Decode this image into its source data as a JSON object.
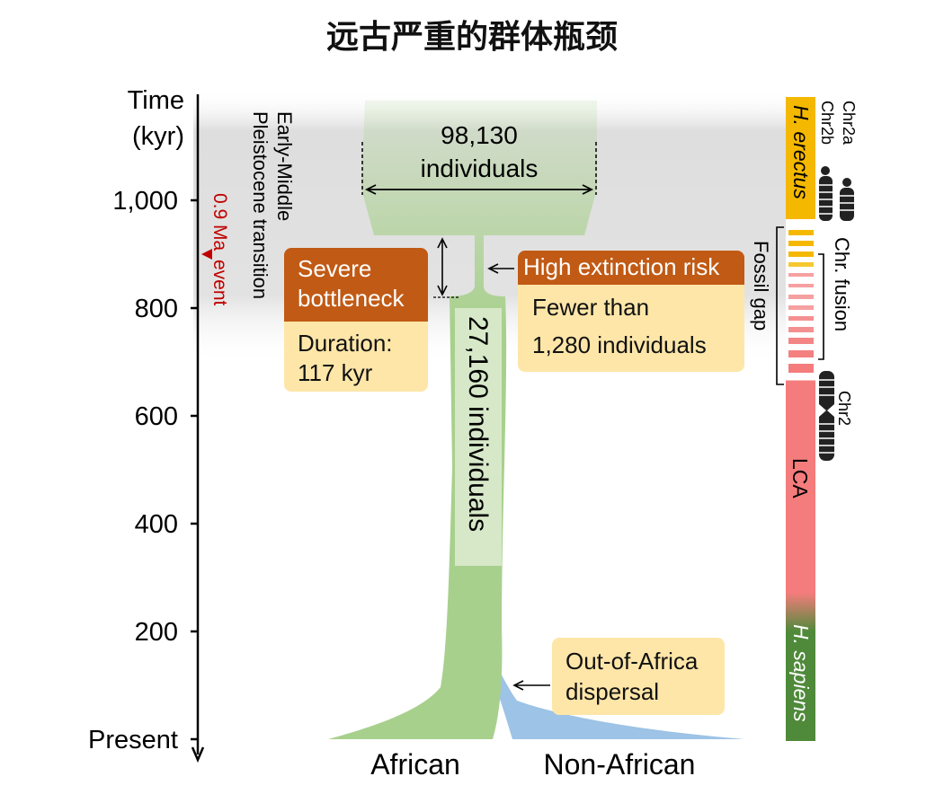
{
  "title": "远古严重的群体瓶颈",
  "axis": {
    "label_line1": "Time",
    "label_line2": "(kyr)",
    "ticks": [
      "1,000",
      "800",
      "600",
      "400",
      "200",
      "Present"
    ]
  },
  "transition_label_line1": "Early-Middle",
  "transition_label_line2": "Pleistocene transition",
  "event_label_line1": "0.9 Ma",
  "event_label_line2": "event",
  "ancestral_size_line1": "98,130",
  "ancestral_size_line2": "individuals",
  "bottleneck_size": "27,160 individuals",
  "severe_box": {
    "head_line1": "Severe",
    "head_line2": "bottleneck",
    "body_line1": "Duration:",
    "body_line2": "117 kyr"
  },
  "risk_box": {
    "head": "High extinction risk",
    "body_line1": "Fewer than",
    "body_line2": "1,280 individuals"
  },
  "dispersal_box": {
    "line1": "Out-of-Africa",
    "line2": "dispersal"
  },
  "bottom_labels": {
    "african": "African",
    "non_african": "Non-African"
  },
  "species_bar": {
    "erectus": "H. erectus",
    "lca": "LCA",
    "sapiens": "H. sapiens",
    "fossil_gap": "Fossil gap",
    "chr_fusion": "Chr. fusion",
    "chr2a": "Chr2a",
    "chr2b": "Chr2b",
    "chr2": "Chr2"
  },
  "colors": {
    "green": "#a8d08d",
    "blue": "#9dc3e6",
    "orange_head": "#c15a14",
    "cream": "#fde6a8",
    "erectus_yellow": "#f5b800",
    "lca_pink": "#f47c7c",
    "sapiens_green": "#4f8a3a",
    "event_red": "#c00000"
  }
}
